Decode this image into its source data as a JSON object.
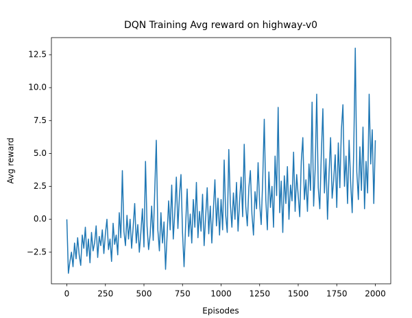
{
  "chart_data": {
    "type": "line",
    "title": "DQN Training Avg reward on highway-v0",
    "xlabel": "Episodes",
    "ylabel": "Avg reward",
    "color": "#1f77b4",
    "grid": false,
    "xlim": [
      -100,
      2100
    ],
    "xticks": [
      0,
      250,
      500,
      750,
      1000,
      1250,
      1500,
      1750,
      2000
    ],
    "ylim": [
      -4.9,
      13.8
    ],
    "yticks": [
      {
        "value": -2.5,
        "label": "−2.5"
      },
      {
        "value": 0,
        "label": "0.0"
      },
      2.5,
      {
        "value": 5,
        "label": "5.0"
      },
      7.5,
      {
        "value": 10,
        "label": "10.0"
      },
      12.5
    ],
    "x": [
      0,
      10,
      20,
      30,
      40,
      50,
      60,
      70,
      80,
      90,
      100,
      110,
      120,
      130,
      140,
      150,
      160,
      170,
      180,
      190,
      200,
      210,
      220,
      230,
      240,
      250,
      260,
      270,
      280,
      290,
      300,
      310,
      320,
      330,
      340,
      350,
      360,
      370,
      380,
      390,
      400,
      410,
      420,
      430,
      440,
      450,
      460,
      470,
      480,
      490,
      500,
      510,
      520,
      530,
      540,
      550,
      560,
      570,
      580,
      590,
      600,
      610,
      620,
      630,
      640,
      650,
      660,
      670,
      680,
      690,
      700,
      710,
      720,
      730,
      740,
      750,
      760,
      770,
      780,
      790,
      800,
      810,
      820,
      830,
      840,
      850,
      860,
      870,
      880,
      890,
      900,
      910,
      920,
      930,
      940,
      950,
      960,
      970,
      980,
      990,
      1000,
      1010,
      1020,
      1030,
      1040,
      1050,
      1060,
      1070,
      1080,
      1090,
      1100,
      1110,
      1120,
      1130,
      1140,
      1150,
      1160,
      1170,
      1180,
      1190,
      1200,
      1210,
      1220,
      1230,
      1240,
      1250,
      1260,
      1270,
      1280,
      1290,
      1300,
      1310,
      1320,
      1330,
      1340,
      1350,
      1360,
      1370,
      1380,
      1390,
      1400,
      1410,
      1420,
      1430,
      1440,
      1450,
      1460,
      1470,
      1480,
      1490,
      1500,
      1510,
      1520,
      1530,
      1540,
      1550,
      1560,
      1570,
      1580,
      1590,
      1600,
      1610,
      1620,
      1630,
      1640,
      1650,
      1660,
      1670,
      1680,
      1690,
      1700,
      1710,
      1720,
      1730,
      1740,
      1750,
      1760,
      1770,
      1780,
      1790,
      1800,
      1810,
      1820,
      1830,
      1840,
      1850,
      1860,
      1870,
      1880,
      1890,
      1900,
      1910,
      1920,
      1930,
      1940,
      1950,
      1960,
      1970,
      1980,
      1990,
      2000
    ],
    "values": [
      0,
      -4.1,
      -3.2,
      -2.5,
      -3.6,
      -1.8,
      -3.0,
      -1.4,
      -2.7,
      -3.5,
      -1.2,
      -2.2,
      -0.6,
      -2.8,
      -1.5,
      -3.3,
      -1.0,
      -2.4,
      -1.8,
      -0.5,
      -2.9,
      -1.3,
      -2.0,
      -0.8,
      -2.6,
      -1.1,
      0.0,
      -2.3,
      -1.5,
      -3.2,
      -0.3,
      -1.9,
      -1.2,
      -2.7,
      0.5,
      -1.4,
      3.7,
      -0.9,
      -2.0,
      0.3,
      -1.5,
      0.0,
      -2.2,
      -0.6,
      1.2,
      -1.8,
      -0.4,
      -2.5,
      -1.0,
      0.8,
      -2.1,
      4.4,
      -0.5,
      -2.3,
      -1.2,
      1.0,
      -1.6,
      2.2,
      6.0,
      -0.8,
      -2.4,
      0.5,
      -1.8,
      -0.2,
      -3.8,
      -1.2,
      1.4,
      -0.8,
      2.6,
      -1.5,
      0.5,
      3.2,
      -0.7,
      1.8,
      3.4,
      -1.0,
      -3.6,
      -0.5,
      2.3,
      -1.3,
      0.4,
      -1.8,
      1.5,
      -0.6,
      2.8,
      -1.4,
      0.6,
      -0.9,
      1.9,
      -2.0,
      0.2,
      2.4,
      -1.1,
      1.0,
      -1.8,
      0.7,
      3.0,
      -0.5,
      1.6,
      -1.2,
      1.5,
      -0.8,
      4.5,
      0.3,
      -1.0,
      5.3,
      1.2,
      -0.6,
      2.0,
      0.0,
      2.8,
      -0.9,
      1.4,
      3.2,
      0.2,
      5.7,
      1.0,
      -0.5,
      2.4,
      3.7,
      0.4,
      -1.2,
      2.1,
      0.8,
      4.3,
      1.2,
      -0.4,
      3.0,
      7.6,
      1.5,
      -0.8,
      3.6,
      0.9,
      2.5,
      -0.6,
      4.8,
      1.8,
      8.5,
      0.5,
      2.9,
      -1.0,
      3.3,
      1.2,
      4.0,
      0.0,
      2.6,
      1.4,
      5.1,
      0.6,
      3.4,
      1.8,
      0.2,
      4.4,
      6.2,
      1.5,
      3.0,
      0.6,
      4.2,
      2.2,
      8.9,
      1.0,
      3.8,
      9.5,
      2.4,
      0.8,
      5.0,
      8.4,
      2.0,
      4.6,
      0.0,
      3.5,
      6.2,
      1.6,
      3.0,
      4.9,
      0.9,
      5.8,
      2.4,
      6.8,
      8.7,
      2.5,
      4.8,
      1.2,
      6.0,
      2.8,
      0.5,
      5.2,
      13.0,
      3.6,
      1.5,
      5.5,
      2.2,
      7.0,
      0.8,
      4.4,
      2.0,
      9.5,
      4.2,
      6.8,
      1.2,
      6.0
    ]
  }
}
